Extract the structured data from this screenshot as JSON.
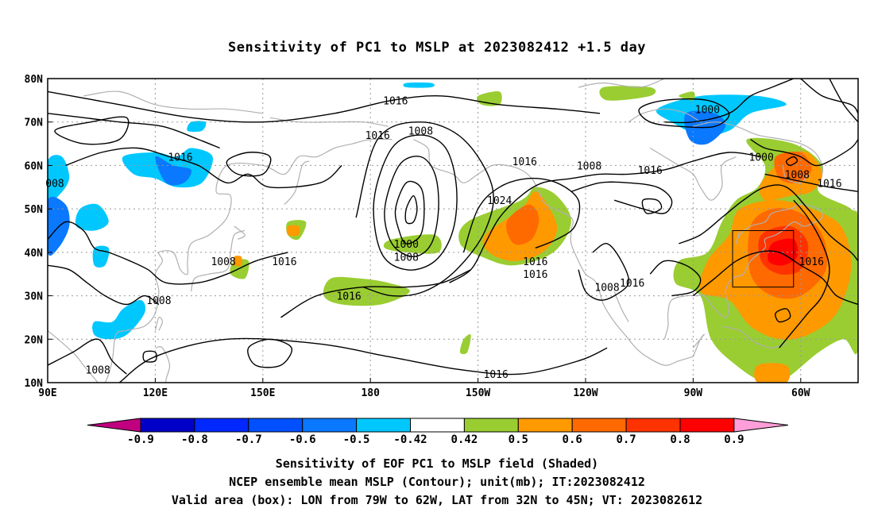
{
  "title": "Sensitivity of PC1 to MSLP at 2023082412 +1.5 day",
  "map": {
    "lat_labels": [
      "80N",
      "70N",
      "60N",
      "50N",
      "40N",
      "30N",
      "20N",
      "10N"
    ],
    "lon_labels": [
      "90E",
      "120E",
      "150E",
      "180",
      "150W",
      "120W",
      "90W",
      "60W"
    ],
    "contour_labels": [
      {
        "text": "1016",
        "lon": 187,
        "lat": 75
      },
      {
        "text": "1016",
        "lon": 182,
        "lat": 67
      },
      {
        "text": "1008",
        "lon": 194,
        "lat": 68
      },
      {
        "text": "1016",
        "lon": 127,
        "lat": 62
      },
      {
        "text": "1016",
        "lon": 223,
        "lat": 61
      },
      {
        "text": "1024",
        "lon": 216,
        "lat": 52
      },
      {
        "text": "1008",
        "lon": 241,
        "lat": 60
      },
      {
        "text": "1016",
        "lon": 258,
        "lat": 59
      },
      {
        "text": "1000",
        "lon": 274,
        "lat": 73
      },
      {
        "text": "1000",
        "lon": 289,
        "lat": 62
      },
      {
        "text": "1008",
        "lon": 299,
        "lat": 58
      },
      {
        "text": "1016",
        "lon": 308,
        "lat": 56
      },
      {
        "text": "1000",
        "lon": 190,
        "lat": 42
      },
      {
        "text": "1008",
        "lon": 190,
        "lat": 39
      },
      {
        "text": "1016",
        "lon": 226,
        "lat": 38
      },
      {
        "text": "1008",
        "lon": 139,
        "lat": 38
      },
      {
        "text": "1016",
        "lon": 156,
        "lat": 38
      },
      {
        "text": "1016",
        "lon": 174,
        "lat": 30
      },
      {
        "text": "1016",
        "lon": 226,
        "lat": 35
      },
      {
        "text": "1016",
        "lon": 253,
        "lat": 33
      },
      {
        "text": "1008",
        "lon": 246,
        "lat": 32
      },
      {
        "text": "1016",
        "lon": 303,
        "lat": 38
      },
      {
        "text": "1016",
        "lon": 215,
        "lat": 12
      },
      {
        "text": "1008",
        "lon": 121,
        "lat": 29
      },
      {
        "text": "1008",
        "lon": 104,
        "lat": 13
      },
      {
        "text": "008",
        "lon": 92,
        "lat": 56
      }
    ],
    "valid_box": {
      "lon_min": -79,
      "lon_max": -62,
      "lat_min": 32,
      "lat_max": 45
    }
  },
  "colorbar": {
    "labels": [
      "-0.9",
      "-0.8",
      "-0.7",
      "-0.6",
      "-0.5",
      "-0.42",
      "0.42",
      "0.5",
      "0.6",
      "0.7",
      "0.8",
      "0.9"
    ],
    "colors": [
      "#c0007f",
      "#0000c8",
      "#0028ff",
      "#0050ff",
      "#0a78ff",
      "#00c8ff",
      "#ffffff",
      "#9acd32",
      "#ff9900",
      "#ff6a00",
      "#ff3300",
      "#ff0000",
      "#ff9ed8"
    ]
  },
  "captions": {
    "line1": "Sensitivity of EOF PC1 to MSLP field (Shaded)",
    "line2": "NCEP ensemble mean MSLP (Contour); unit(mb); IT:2023082412",
    "line3": "Valid area (box): LON from 79W to 62W, LAT from 32N to 45N; VT: 2023082612"
  }
}
